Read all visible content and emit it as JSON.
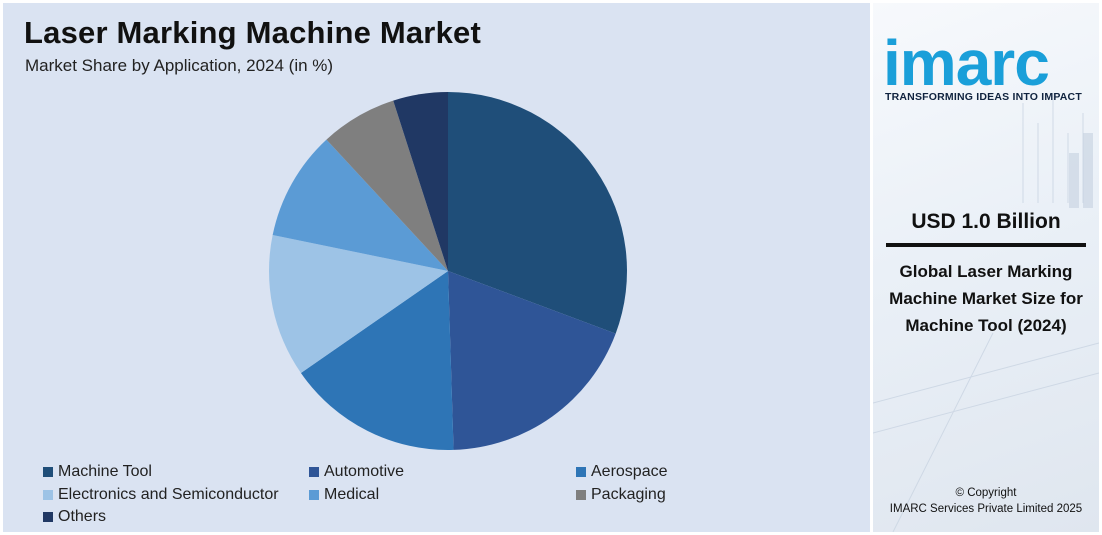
{
  "header": {
    "title": "Laser Marking Machine Market",
    "subtitle": "Market Share by Application, 2024 (in %)"
  },
  "chart_data": {
    "type": "pie",
    "title": "Laser Marking Machine Market",
    "subtitle": "Market Share by Application, 2024 (in %)",
    "categories": [
      "Machine Tool",
      "Automotive",
      "Aerospace",
      "Electronics and Semiconductor",
      "Medical",
      "Packaging",
      "Others"
    ],
    "values": [
      31,
      19,
      16,
      13,
      10,
      7,
      5
    ],
    "colors": [
      "#1f4e79",
      "#2f5597",
      "#2e75b6",
      "#9dc3e6",
      "#5b9bd5",
      "#7f7f7f",
      "#203864"
    ],
    "start_angle_deg": 0,
    "direction": "clockwise",
    "legend_position": "bottom"
  },
  "legend": {
    "items": [
      {
        "label": "Machine Tool",
        "color": "#1f4e79"
      },
      {
        "label": "Automotive",
        "color": "#2f5597"
      },
      {
        "label": "Aerospace",
        "color": "#2e75b6"
      },
      {
        "label": "Electronics and Semiconductor",
        "color": "#9dc3e6"
      },
      {
        "label": "Medical",
        "color": "#5b9bd5"
      },
      {
        "label": "Packaging",
        "color": "#7f7f7f"
      },
      {
        "label": "Others",
        "color": "#203864"
      }
    ]
  },
  "sidebar": {
    "logo_text": "imarc",
    "tagline": "TRANSFORMING IDEAS INTO IMPACT",
    "value": "USD 1.0 Billion",
    "description": "Global Laser Marking Machine Market Size for Machine Tool (2024)",
    "copyright_line1": "© Copyright",
    "copyright_line2": "IMARC Services Private Limited 2025",
    "brand_color": "#1a9fd9"
  }
}
